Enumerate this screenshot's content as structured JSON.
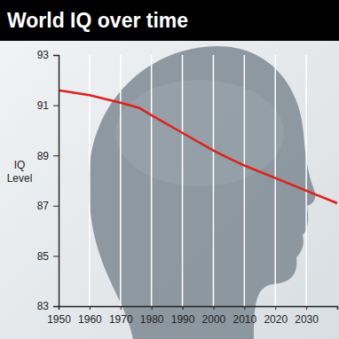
{
  "chart_data": {
    "type": "line",
    "title": "World IQ over time",
    "y_label": "IQ Level",
    "x": [
      1950,
      1960,
      1970,
      1976,
      1980,
      1990,
      2000,
      2004,
      2010,
      2020,
      2030,
      2040
    ],
    "values": [
      91.6,
      91.4,
      91.1,
      90.9,
      90.6,
      89.9,
      89.2,
      88.95,
      88.6,
      88.1,
      87.6,
      87.1
    ],
    "color": "#e0201b",
    "xlim": [
      1950,
      2040
    ],
    "xticks": [
      1950,
      1960,
      1970,
      1980,
      1990,
      2000,
      2010,
      2020,
      2030
    ],
    "ylim": [
      83,
      93
    ],
    "yticks": [
      83,
      85,
      87,
      89,
      91,
      93
    ],
    "grid": true
  }
}
